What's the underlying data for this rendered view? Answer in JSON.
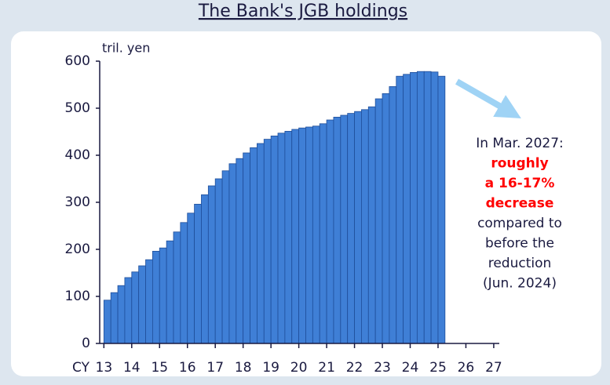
{
  "chart_data": {
    "type": "bar",
    "title": "The Bank's JGB holdings",
    "y_unit": "tril. yen",
    "x_prefix": "CY",
    "x": [
      13,
      13.25,
      13.5,
      13.75,
      14,
      14.25,
      14.5,
      14.75,
      15,
      15.25,
      15.5,
      15.75,
      16,
      16.25,
      16.5,
      16.75,
      17,
      17.25,
      17.5,
      17.75,
      18,
      18.25,
      18.5,
      18.75,
      19,
      19.25,
      19.5,
      19.75,
      20,
      20.25,
      20.5,
      20.75,
      21,
      21.25,
      21.5,
      21.75,
      22,
      22.25,
      22.5,
      22.75,
      23,
      23.25,
      23.5,
      23.75,
      24,
      24.25,
      24.5,
      24.75,
      25
    ],
    "values": [
      92,
      108,
      123,
      140,
      152,
      165,
      178,
      196,
      203,
      218,
      237,
      257,
      277,
      296,
      316,
      335,
      350,
      367,
      382,
      393,
      405,
      416,
      425,
      434,
      441,
      447,
      451,
      455,
      458,
      460,
      462,
      467,
      475,
      481,
      485,
      489,
      493,
      497,
      503,
      520,
      531,
      546,
      568,
      572,
      576,
      578,
      578,
      577,
      568
    ],
    "color": "#3f7fd6",
    "xlim": [
      12.85,
      27.2
    ],
    "xticks": [
      13,
      14,
      15,
      16,
      17,
      18,
      19,
      20,
      21,
      22,
      23,
      24,
      25,
      26,
      27
    ],
    "ylim": [
      0,
      600
    ],
    "yticks": [
      0,
      100,
      200,
      300,
      400,
      500,
      600
    ],
    "annotation": [
      {
        "text": "In Mar. 2027:",
        "color": "#1a1a40",
        "bold": false
      },
      {
        "text": "roughly",
        "color": "#ff0000",
        "bold": true
      },
      {
        "text": "a 16-17%",
        "color": "#ff0000",
        "bold": true
      },
      {
        "text": "decrease",
        "color": "#ff0000",
        "bold": true
      },
      {
        "text": "compared to",
        "color": "#1a1a40",
        "bold": false
      },
      {
        "text": "before the",
        "color": "#1a1a40",
        "bold": false
      },
      {
        "text": "reduction",
        "color": "#1a1a40",
        "bold": false
      },
      {
        "text": "(Jun. 2024)",
        "color": "#1a1a40",
        "bold": false
      }
    ]
  }
}
